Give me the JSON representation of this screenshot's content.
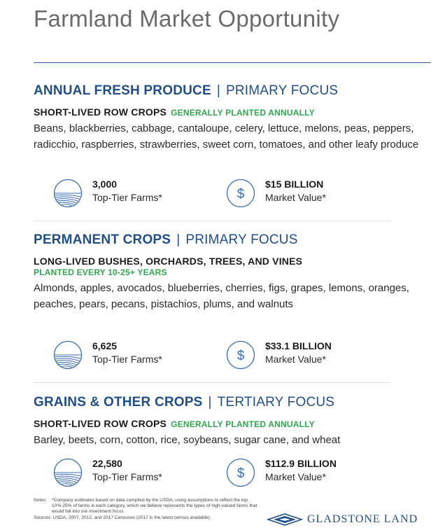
{
  "page": {
    "title": "Farmland Market Opportunity"
  },
  "sections": [
    {
      "heading": "ANNUAL FRESH PRODUCE",
      "separator": "|",
      "focus": "PRIMARY FOCUS",
      "subheading": "SHORT-LIVED ROW CROPS",
      "planting": "GENERALLY PLANTED ANNUALLY",
      "crops": "Beans, blackberries, cabbage, cantaloupe, celery, lettuce, melons, peas, peppers, radicchio, raspberries, strawberries, sweet corn, tomatoes, and other leafy produce",
      "farms_value": "3,000",
      "farms_label": "Top-Tier Farms*",
      "market_value": "$15 BILLION",
      "market_label": "Market Value*"
    },
    {
      "heading": "PERMANENT CROPS",
      "separator": "|",
      "focus": "PRIMARY FOCUS",
      "subheading": "LONG-LIVED BUSHES, ORCHARDS, TREES, AND VINES",
      "planting": "PLANTED EVERY 10-25+ YEARS",
      "crops": "Almonds, apples, avocados, blueberries, cherries, figs, grapes, lemons, oranges, peaches, pears, pecans, pistachios, plums, and walnuts",
      "farms_value": "6,625",
      "farms_label": "Top-Tier Farms*",
      "market_value": "$33.1 BILLION",
      "market_label": "Market Value*"
    },
    {
      "heading": "GRAINS & OTHER CROPS",
      "separator": "|",
      "focus": "TERTIARY FOCUS",
      "subheading": "SHORT-LIVED ROW CROPS",
      "planting": "GENERALLY PLANTED ANNUALLY",
      "crops": "Barley, beets, corn, cotton, rice, soybeans, sugar cane, and wheat",
      "farms_value": "22,580",
      "farms_label": "Top-Tier Farms*",
      "market_value": "$112.9 BILLION",
      "market_label": "Market Value*"
    }
  ],
  "icons": {
    "farm": "farmland-globe-icon",
    "money": "dollar-circle-icon"
  },
  "footer": {
    "notes_label": "Notes:",
    "notes_text": "*Company estimates based on data compiled by the USDA, using assumptions to reflect the top 10%-25% of farms in each category, which we believe represents the types of high-valued farms that would fall into our investment focus",
    "sources": "Sources: USDA, 2007, 2012, and 2017 Censuses (2017 is the latest census available)",
    "brand": "GLADSTONE LAND"
  },
  "colors": {
    "navy": "#1f4e8c",
    "green": "#2fa84f",
    "icon_blue": "#3a6fb5"
  }
}
